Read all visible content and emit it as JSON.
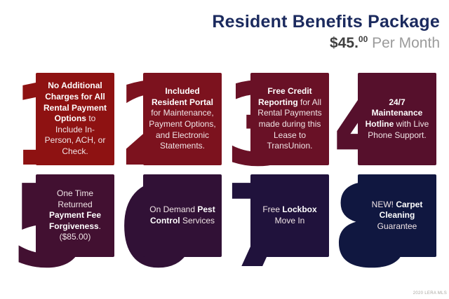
{
  "header": {
    "title": "Resident Benefits Package",
    "price_dollars": "$45.",
    "price_cents": "00",
    "price_suffix": " Per Month"
  },
  "colors": {
    "title_navy": "#1b2a5e",
    "price_dark": "#3f3f3f",
    "price_gray": "#9b9b9b"
  },
  "cards": [
    {
      "number": "1",
      "color": "#8e1212",
      "segments": [
        {
          "text": "No Additional Charges for All Rental Payment Options",
          "bold": true
        },
        {
          "text": " to Include In-Person, ACH, or Check.",
          "bold": false
        }
      ]
    },
    {
      "number": "2",
      "color": "#7c121e",
      "segments": [
        {
          "text": "Included Resident Portal",
          "bold": true
        },
        {
          "text": " for Maintenance, Payment Options, and Electronic Statements.",
          "bold": false
        }
      ]
    },
    {
      "number": "3",
      "color": "#691126",
      "segments": [
        {
          "text": "Free Credit Reporting",
          "bold": true
        },
        {
          "text": " for All Rental Payments made during this Lease to TransUnion.",
          "bold": false
        }
      ]
    },
    {
      "number": "4",
      "color": "#56102c",
      "segments": [
        {
          "text": "24/7 Maintenance Hotline",
          "bold": true
        },
        {
          "text": " with Live Phone Support.",
          "bold": false
        }
      ]
    },
    {
      "number": "5",
      "color": "#421031",
      "segments": [
        {
          "text": "One Time Returned ",
          "bold": false
        },
        {
          "text": "Payment Fee Forgiveness",
          "bold": true
        },
        {
          "text": ". ($85.00)",
          "bold": false
        }
      ]
    },
    {
      "number": "6",
      "color": "#311136",
      "segments": [
        {
          "text": "On Demand ",
          "bold": false
        },
        {
          "text": "Pest Control",
          "bold": true
        },
        {
          "text": " Services",
          "bold": false
        }
      ]
    },
    {
      "number": "7",
      "color": "#20123c",
      "segments": [
        {
          "text": "Free ",
          "bold": false
        },
        {
          "text": "Lockbox",
          "bold": true
        },
        {
          "text": " Move In",
          "bold": false
        }
      ]
    },
    {
      "number": "8",
      "color": "#101740",
      "segments": [
        {
          "text": "NEW! ",
          "bold": false
        },
        {
          "text": "Carpet Cleaning",
          "bold": true
        },
        {
          "text": " Guarantee",
          "bold": false
        }
      ]
    }
  ],
  "footer": {
    "watermark": "2020 LERA MLS"
  }
}
